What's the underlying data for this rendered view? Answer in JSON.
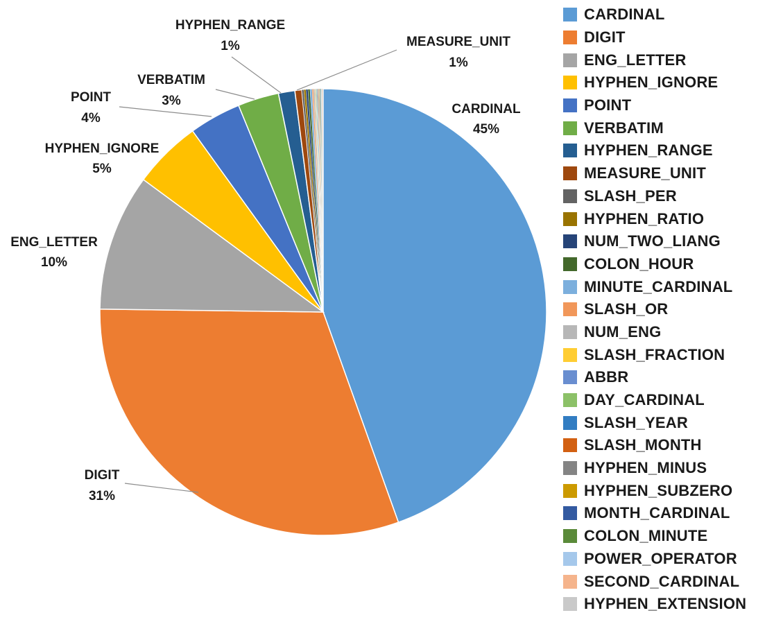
{
  "chart_data": {
    "type": "pie",
    "title": "",
    "legend_position": "right",
    "slices": [
      {
        "name": "CARDINAL",
        "value": 45.0,
        "label": "45%",
        "color": "#5B9BD5"
      },
      {
        "name": "DIGIT",
        "value": 31.0,
        "label": "31%",
        "color": "#ED7D31"
      },
      {
        "name": "ENG_LETTER",
        "value": 10.0,
        "label": "10%",
        "color": "#A5A5A5"
      },
      {
        "name": "HYPHEN_IGNORE",
        "value": 5.0,
        "label": "5%",
        "color": "#FFC000"
      },
      {
        "name": "POINT",
        "value": 3.8,
        "label": "4%",
        "color": "#4472C4"
      },
      {
        "name": "VERBATIM",
        "value": 3.0,
        "label": "3%",
        "color": "#70AD47"
      },
      {
        "name": "HYPHEN_RANGE",
        "value": 1.2,
        "label": "1%",
        "color": "#255E91"
      },
      {
        "name": "MEASURE_UNIT",
        "value": 0.5,
        "label": "1%",
        "color": "#9E480E"
      },
      {
        "name": "SLASH_PER",
        "value": 0.15,
        "color": "#636363"
      },
      {
        "name": "HYPHEN_RATIO",
        "value": 0.15,
        "color": "#997300"
      },
      {
        "name": "NUM_TWO_LIANG",
        "value": 0.15,
        "color": "#264478"
      },
      {
        "name": "COLON_HOUR",
        "value": 0.15,
        "color": "#43682B"
      },
      {
        "name": "MINUTE_CARDINAL",
        "value": 0.15,
        "color": "#7CAFDD"
      },
      {
        "name": "SLASH_OR",
        "value": 0.1,
        "color": "#F1975A"
      },
      {
        "name": "NUM_ENG",
        "value": 0.1,
        "color": "#B7B7B7"
      },
      {
        "name": "SLASH_FRACTION",
        "value": 0.05,
        "color": "#FFCD33"
      },
      {
        "name": "ABBR",
        "value": 0.05,
        "color": "#698ED0"
      },
      {
        "name": "DAY_CARDINAL",
        "value": 0.05,
        "color": "#8CC168"
      },
      {
        "name": "SLASH_YEAR",
        "value": 0.05,
        "color": "#327DC2"
      },
      {
        "name": "SLASH_MONTH",
        "value": 0.05,
        "color": "#D26012"
      },
      {
        "name": "HYPHEN_MINUS",
        "value": 0.05,
        "color": "#848484"
      },
      {
        "name": "HYPHEN_SUBZERO",
        "value": 0.05,
        "color": "#CC9A00"
      },
      {
        "name": "MONTH_CARDINAL",
        "value": 0.05,
        "color": "#335AA1"
      },
      {
        "name": "COLON_MINUTE",
        "value": 0.05,
        "color": "#5A8A39"
      },
      {
        "name": "POWER_OPERATOR",
        "value": 0.05,
        "color": "#A5C8EB"
      },
      {
        "name": "SECOND_CARDINAL",
        "value": 0.05,
        "color": "#F5B48C"
      },
      {
        "name": "HYPHEN_EXTENSION",
        "value": 0.05,
        "color": "#C9C9C9"
      }
    ]
  }
}
